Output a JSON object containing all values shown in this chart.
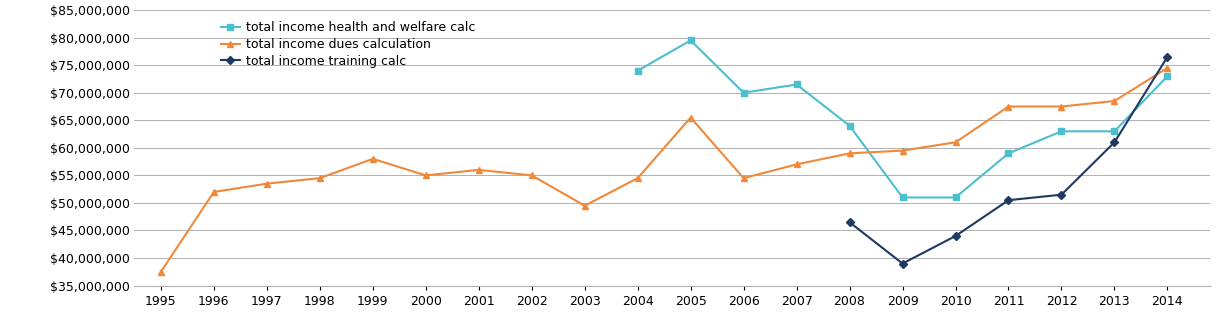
{
  "years": [
    1995,
    1996,
    1997,
    1998,
    1999,
    2000,
    2001,
    2002,
    2003,
    2004,
    2005,
    2006,
    2007,
    2008,
    2009,
    2010,
    2011,
    2012,
    2013,
    2014
  ],
  "health_welfare": [
    null,
    null,
    null,
    null,
    null,
    null,
    null,
    null,
    null,
    74000000,
    79500000,
    70000000,
    71500000,
    64000000,
    51000000,
    51000000,
    59000000,
    63000000,
    63000000,
    73000000
  ],
  "dues": [
    37500000,
    52000000,
    53500000,
    54500000,
    58000000,
    55000000,
    56000000,
    55000000,
    49500000,
    54500000,
    65500000,
    54500000,
    57000000,
    59000000,
    59500000,
    61000000,
    67500000,
    67500000,
    68500000,
    74500000
  ],
  "training": [
    null,
    null,
    null,
    null,
    null,
    null,
    null,
    null,
    null,
    null,
    null,
    null,
    null,
    46500000,
    39000000,
    44000000,
    50500000,
    51500000,
    61000000,
    76500000
  ],
  "color_hw": "#4bbfcf",
  "color_dues": "#f0883a",
  "color_training": "#1f3864",
  "ylim_min": 35000000,
  "ylim_max": 85000000,
  "ytick_step": 5000000,
  "legend_labels": [
    "total income health and welfare calc",
    "total income dues calculation",
    "total income training calc"
  ]
}
